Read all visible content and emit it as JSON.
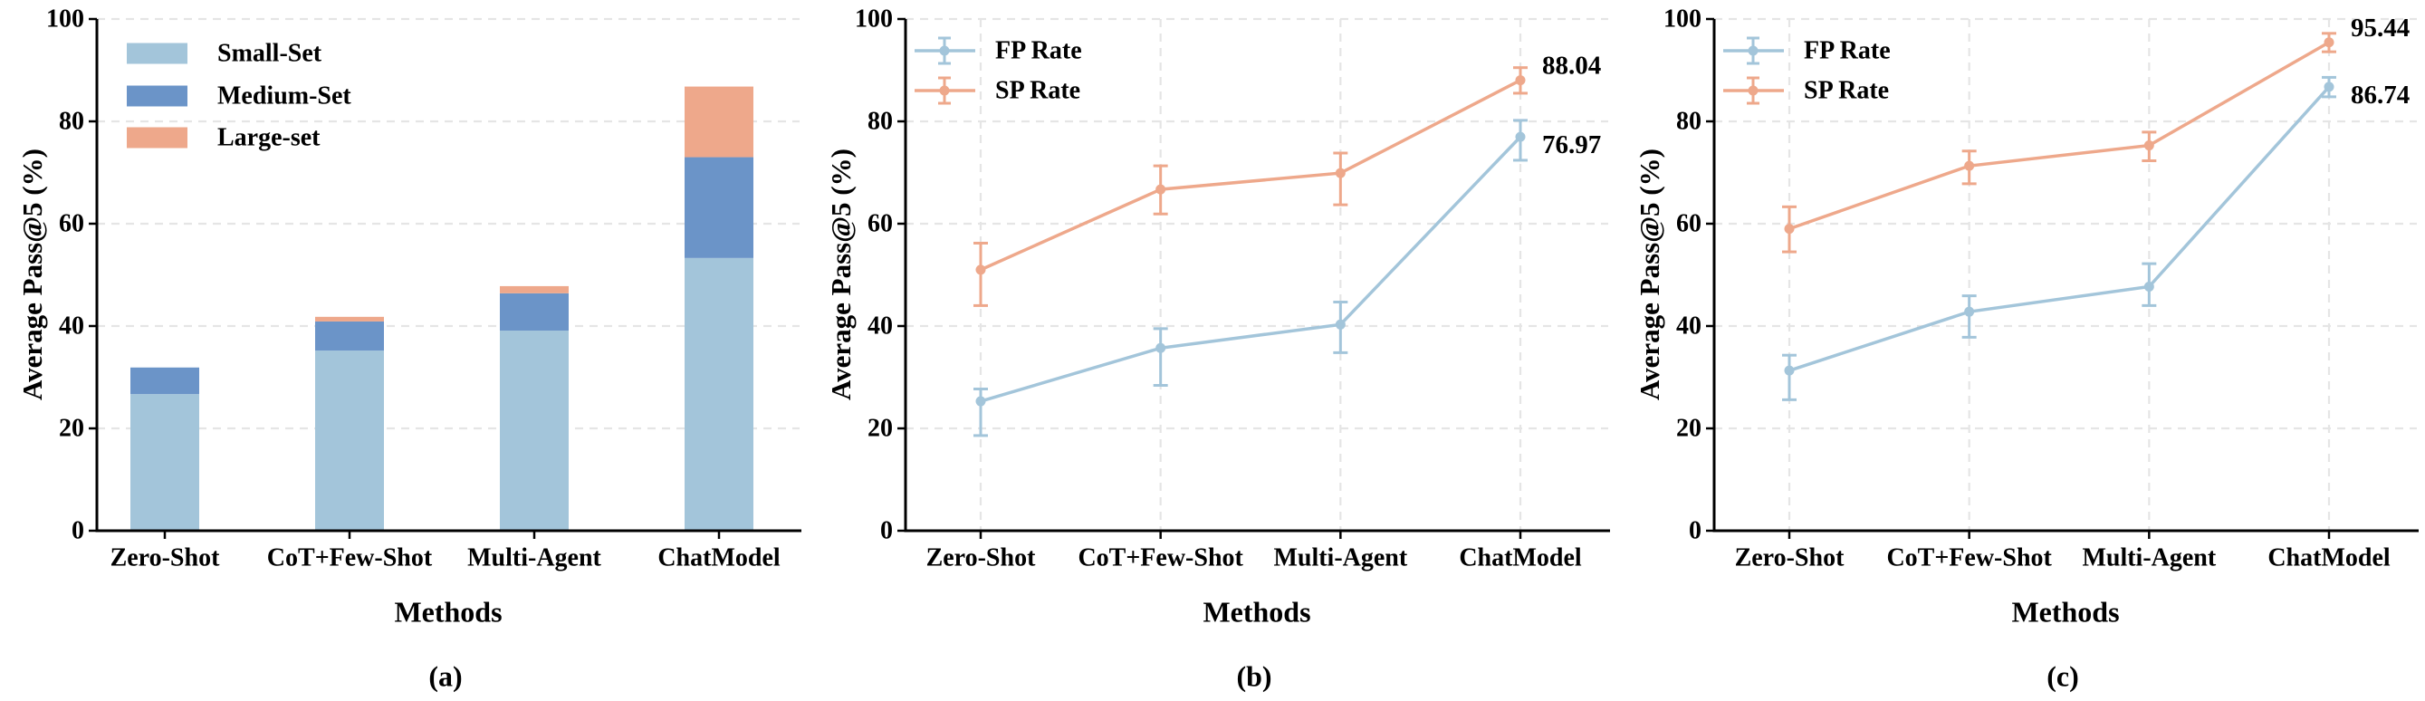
{
  "figure": {
    "background": "#ffffff",
    "text_color": "#000000",
    "grid_color": "#e5e5e5"
  },
  "chart_data": [
    {
      "type": "bar",
      "stacked": true,
      "caption": "(a)",
      "xlabel": "Methods",
      "ylabel": "Average Pass@5 (%)",
      "categories": [
        "Zero-Shot",
        "CoT+Few-Shot",
        "Multi-Agent",
        "ChatModel"
      ],
      "yticks": [
        0,
        20,
        40,
        60,
        80,
        100
      ],
      "ylim": [
        0,
        100
      ],
      "grid": "horizontal-dashed",
      "legend_position": "upper-left",
      "series": [
        {
          "name": "Small-Set",
          "color": "#A3C5DA",
          "values": [
            26.7,
            35.2,
            39.1,
            53.3
          ]
        },
        {
          "name": "Medium-Set",
          "color": "#6B94C8",
          "values": [
            5.2,
            5.7,
            7.3,
            19.7
          ]
        },
        {
          "name": "Large-set",
          "color": "#EEA88B",
          "values": [
            0,
            0.9,
            1.4,
            13.8
          ]
        }
      ]
    },
    {
      "type": "line",
      "caption": "(b)",
      "xlabel": "Methods",
      "ylabel": "Average Pass@5 (%)",
      "categories": [
        "Zero-Shot",
        "CoT+Few-Shot",
        "Multi-Agent",
        "ChatModel"
      ],
      "yticks": [
        0,
        20,
        40,
        60,
        80,
        100
      ],
      "ylim": [
        0,
        100
      ],
      "grid": "both-dashed",
      "legend_position": "upper-left",
      "series": [
        {
          "name": "FP Rate",
          "color": "#A3C5DA",
          "values": [
            25.3,
            35.7,
            40.3,
            76.97
          ],
          "err_high": [
            27.7,
            39.5,
            44.7,
            80.2
          ],
          "err_low": [
            18.6,
            28.4,
            34.8,
            72.4
          ],
          "end_label": "76.97"
        },
        {
          "name": "SP Rate",
          "color": "#EEA88B",
          "values": [
            51.0,
            66.7,
            69.9,
            88.04
          ],
          "err_high": [
            56.2,
            71.3,
            73.8,
            90.5
          ],
          "err_low": [
            44.0,
            61.9,
            63.7,
            85.5
          ],
          "end_label": "88.04"
        }
      ]
    },
    {
      "type": "line",
      "caption": "(c)",
      "xlabel": "Methods",
      "ylabel": "Average Pass@5 (%)",
      "categories": [
        "Zero-Shot",
        "CoT+Few-Shot",
        "Multi-Agent",
        "ChatModel"
      ],
      "yticks": [
        0,
        20,
        40,
        60,
        80,
        100
      ],
      "ylim": [
        0,
        100
      ],
      "grid": "both-dashed",
      "legend_position": "upper-left",
      "series": [
        {
          "name": "FP Rate",
          "color": "#A3C5DA",
          "values": [
            31.3,
            42.8,
            47.7,
            86.74
          ],
          "err_high": [
            34.3,
            45.9,
            52.2,
            88.6
          ],
          "err_low": [
            25.6,
            37.8,
            44.0,
            84.8
          ],
          "end_label": "86.74"
        },
        {
          "name": "SP Rate",
          "color": "#EEA88B",
          "values": [
            59.0,
            71.3,
            75.3,
            95.44
          ],
          "err_high": [
            63.3,
            74.2,
            77.9,
            97.2
          ],
          "err_low": [
            54.5,
            67.8,
            72.3,
            93.6
          ],
          "end_label": "95.44"
        }
      ]
    }
  ]
}
